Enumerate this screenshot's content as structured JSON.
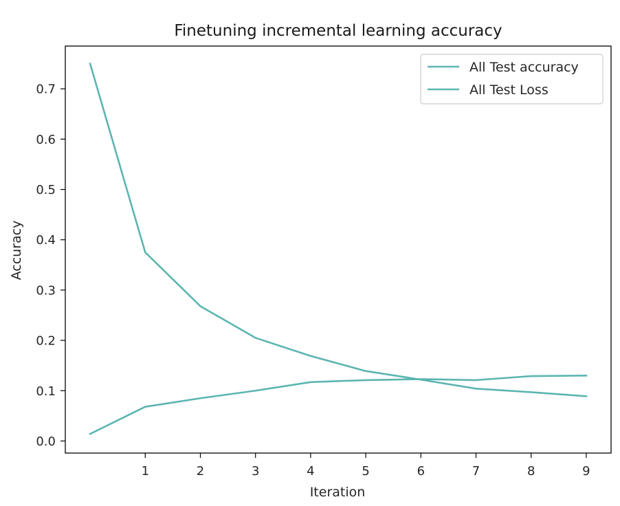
{
  "chart_data": {
    "type": "line",
    "title": "Finetuning incremental learning accuracy",
    "xlabel": "Iteration",
    "ylabel": "Accuracy",
    "x": [
      0,
      1,
      2,
      3,
      4,
      5,
      6,
      7,
      8,
      9
    ],
    "xticks": [
      1,
      2,
      3,
      4,
      5,
      6,
      7,
      8,
      9
    ],
    "yticks": [
      0.0,
      0.1,
      0.2,
      0.3,
      0.4,
      0.5,
      0.6,
      0.7
    ],
    "ytick_labels": [
      "0.0",
      "0.1",
      "0.2",
      "0.3",
      "0.4",
      "0.5",
      "0.6",
      "0.7"
    ],
    "xlim": [
      -0.45,
      9.45
    ],
    "ylim": [
      -0.024,
      0.785
    ],
    "grid": false,
    "legend_position": "top-right",
    "series": [
      {
        "name": "All Test accuracy",
        "color": "#5bb5b0",
        "values": [
          0.014,
          0.068,
          0.085,
          0.1,
          0.117,
          0.121,
          0.123,
          0.121,
          0.129,
          0.13
        ]
      },
      {
        "name": "All Test Loss",
        "color": "#5bb5b0",
        "values": [
          0.75,
          0.375,
          0.268,
          0.205,
          0.169,
          0.139,
          0.122,
          0.104,
          0.097,
          0.089
        ]
      }
    ]
  }
}
